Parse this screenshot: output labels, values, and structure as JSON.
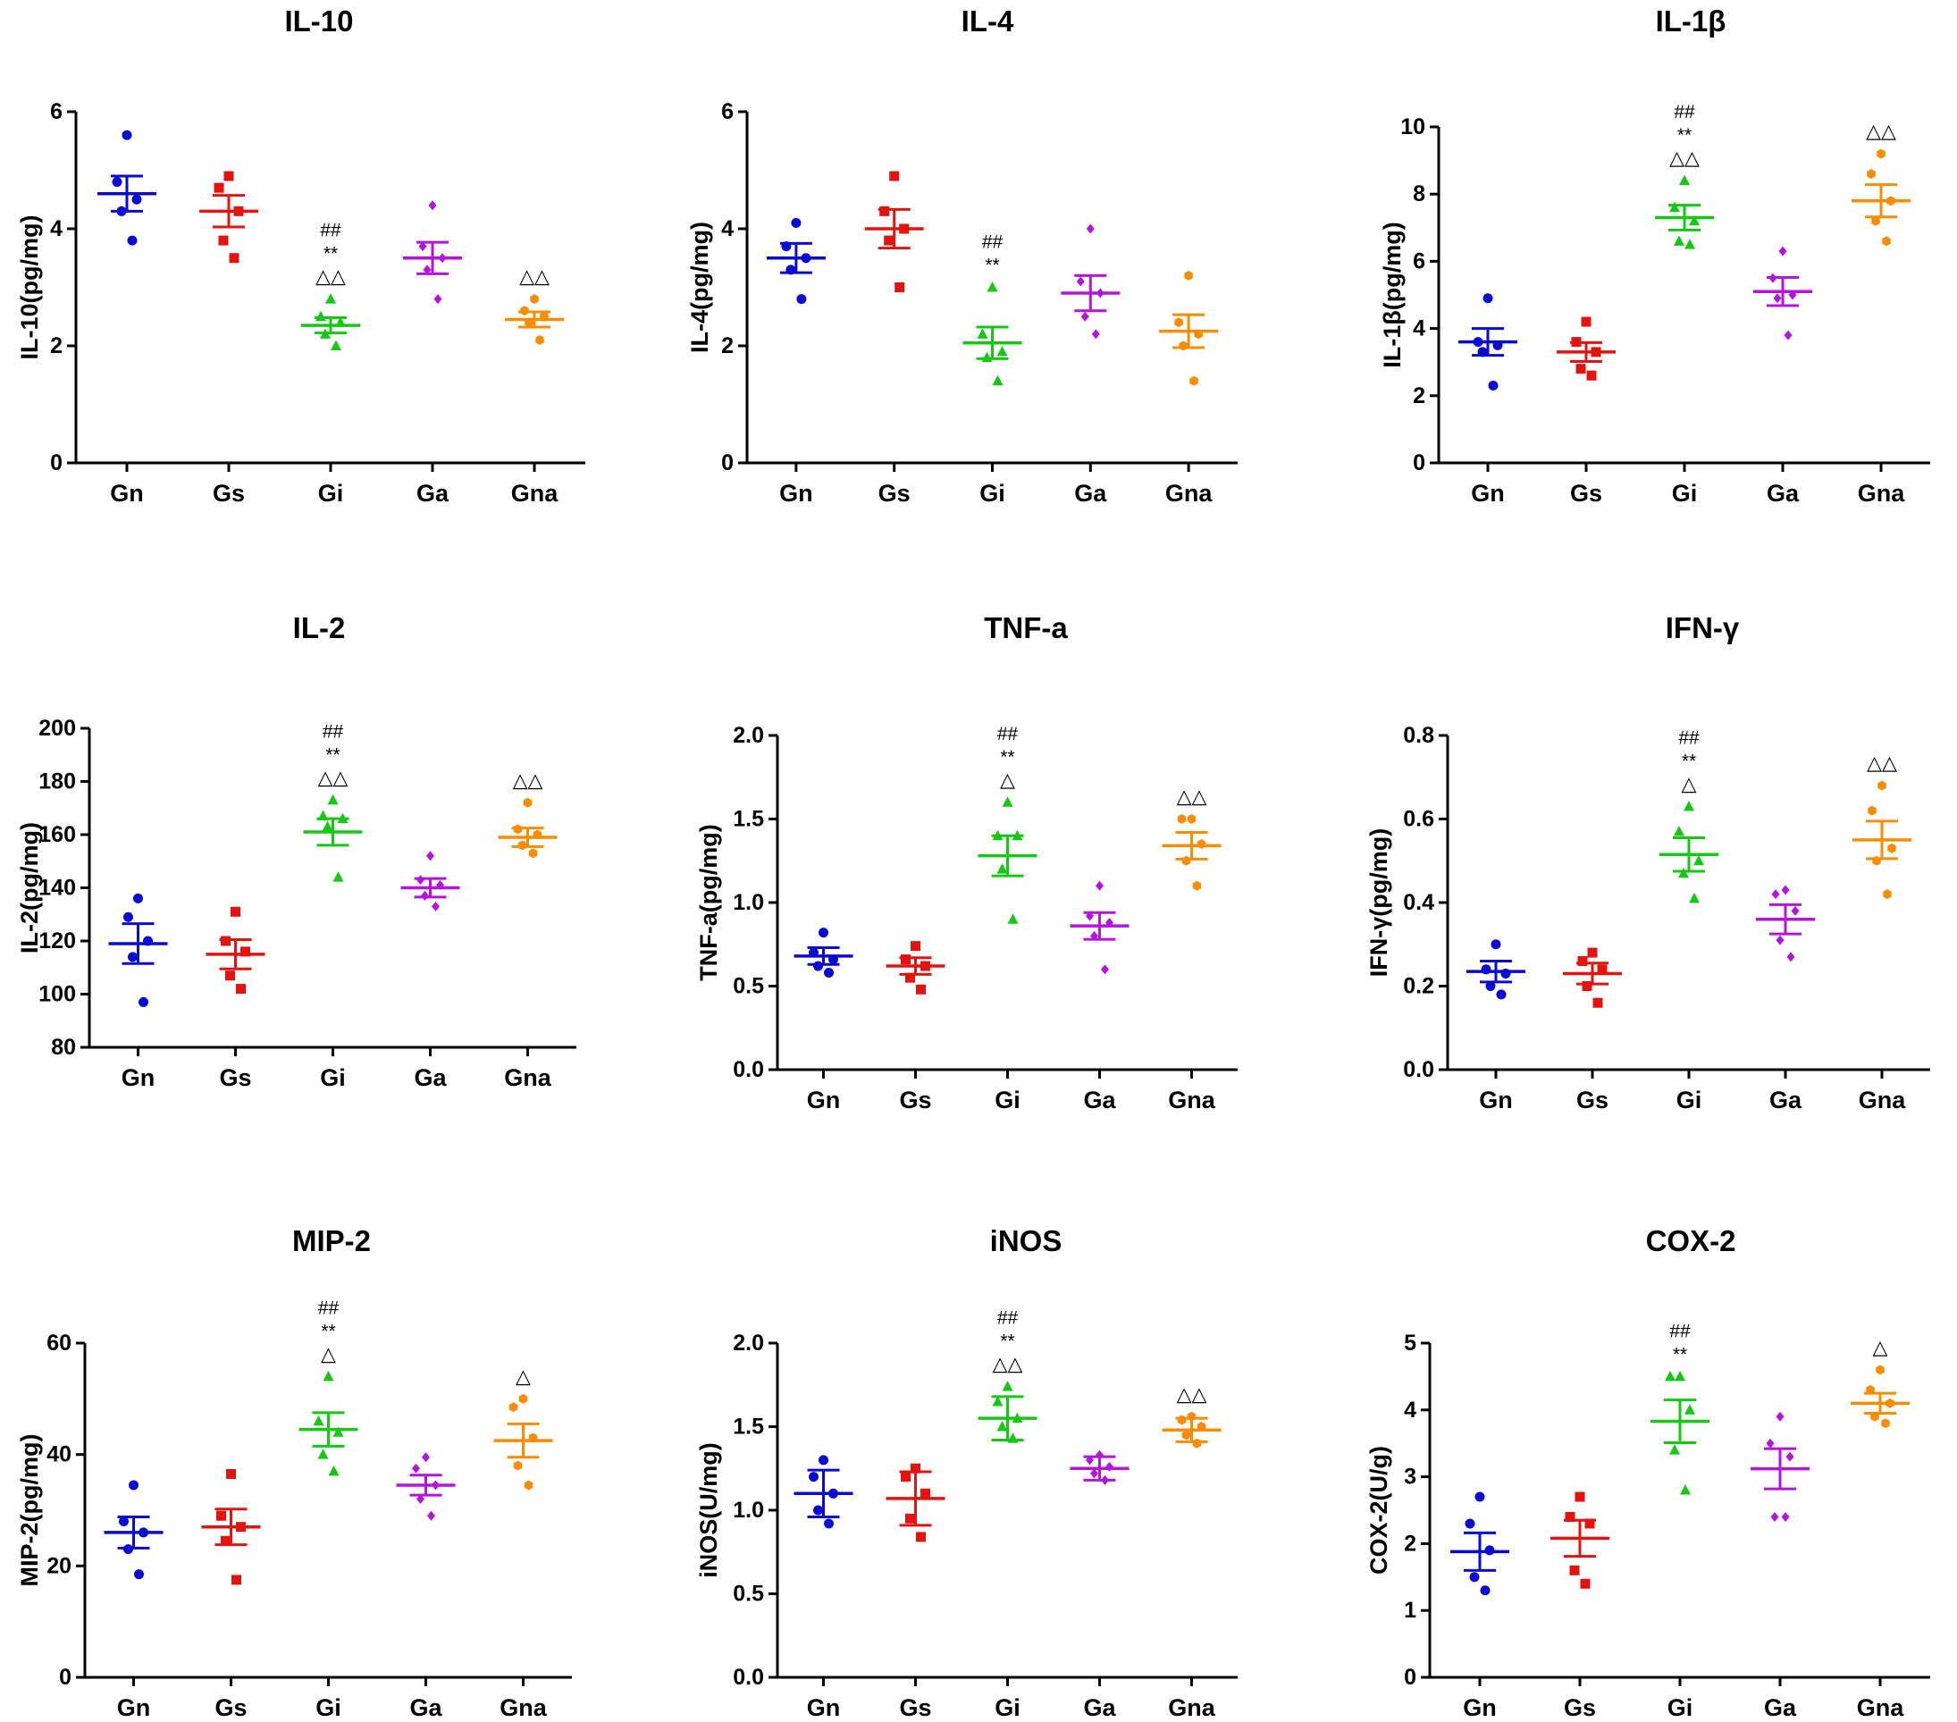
{
  "colors": {
    "Gn": "#0a0ad2",
    "Gs": "#e3140f",
    "Gi": "#14c814",
    "Ga": "#b414dc",
    "Gna": "#fa8c00"
  },
  "chart_data": [
    {
      "type": "scatter",
      "title": "IL-10",
      "ylabel": "IL-10(pg/mg)",
      "ylim": [
        0,
        6
      ],
      "yticks": [
        "0",
        "2",
        "4",
        "6"
      ],
      "categories": [
        "Gn",
        "Gs",
        "Gi",
        "Ga",
        "Gna"
      ],
      "series": [
        {
          "name": "Gn",
          "marker": "circle",
          "mean": 4.6,
          "sem": 0.3,
          "points": [
            5.6,
            4.8,
            4.5,
            4.3,
            3.8
          ]
        },
        {
          "name": "Gs",
          "marker": "square",
          "mean": 4.3,
          "sem": 0.27,
          "points": [
            4.9,
            4.7,
            4.3,
            3.8,
            3.5
          ]
        },
        {
          "name": "Gi",
          "marker": "triangle",
          "mean": 2.35,
          "sem": 0.13,
          "points": [
            2.8,
            2.5,
            2.4,
            2.2,
            2.0
          ]
        },
        {
          "name": "Ga",
          "marker": "diamond",
          "mean": 3.5,
          "sem": 0.27,
          "points": [
            4.4,
            3.7,
            3.5,
            3.3,
            2.8
          ]
        },
        {
          "name": "Gna",
          "marker": "hexagon",
          "mean": 2.45,
          "sem": 0.13,
          "points": [
            2.8,
            2.6,
            2.5,
            2.4,
            2.1
          ]
        }
      ],
      "annotations": [
        {
          "category": "Gi",
          "lines": [
            "##",
            "**",
            "△△"
          ]
        },
        {
          "category": "Gna",
          "lines": [
            "△△"
          ]
        }
      ]
    },
    {
      "type": "scatter",
      "title": "IL-4",
      "ylabel": "IL-4(pg/mg)",
      "ylim": [
        0,
        6
      ],
      "yticks": [
        "0",
        "2",
        "4",
        "6"
      ],
      "categories": [
        "Gn",
        "Gs",
        "Gi",
        "Ga",
        "Gna"
      ],
      "series": [
        {
          "name": "Gn",
          "marker": "circle",
          "mean": 3.5,
          "sem": 0.25,
          "points": [
            4.1,
            3.7,
            3.5,
            3.3,
            2.8
          ]
        },
        {
          "name": "Gs",
          "marker": "square",
          "mean": 4.0,
          "sem": 0.33,
          "points": [
            4.9,
            4.3,
            4.0,
            3.8,
            3.0
          ]
        },
        {
          "name": "Gi",
          "marker": "triangle",
          "mean": 2.05,
          "sem": 0.27,
          "points": [
            3.0,
            2.2,
            1.9,
            1.8,
            1.4
          ]
        },
        {
          "name": "Ga",
          "marker": "diamond",
          "mean": 2.9,
          "sem": 0.3,
          "points": [
            4.0,
            3.1,
            2.9,
            2.5,
            2.2
          ]
        },
        {
          "name": "Gna",
          "marker": "hexagon",
          "mean": 2.25,
          "sem": 0.28,
          "points": [
            3.2,
            2.4,
            2.2,
            2.0,
            1.4
          ]
        }
      ],
      "annotations": [
        {
          "category": "Gi",
          "lines": [
            "##",
            "**"
          ]
        }
      ]
    },
    {
      "type": "scatter",
      "title": "IL-1β",
      "ylabel": "IL-1β(pg/mg)",
      "ylim": [
        0,
        10
      ],
      "yticks": [
        "0",
        "2",
        "4",
        "6",
        "8",
        "10"
      ],
      "categories": [
        "Gn",
        "Gs",
        "Gi",
        "Ga",
        "Gna"
      ],
      "series": [
        {
          "name": "Gn",
          "marker": "circle",
          "mean": 3.6,
          "sem": 0.4,
          "points": [
            4.9,
            3.6,
            3.5,
            3.3,
            2.3
          ]
        },
        {
          "name": "Gs",
          "marker": "square",
          "mean": 3.3,
          "sem": 0.28,
          "points": [
            4.2,
            3.6,
            3.3,
            2.8,
            2.6
          ]
        },
        {
          "name": "Gi",
          "marker": "triangle",
          "mean": 7.3,
          "sem": 0.37,
          "points": [
            8.4,
            7.6,
            7.2,
            6.6,
            6.5
          ]
        },
        {
          "name": "Ga",
          "marker": "diamond",
          "mean": 5.1,
          "sem": 0.42,
          "points": [
            6.3,
            5.5,
            5.0,
            4.9,
            3.8
          ]
        },
        {
          "name": "Gna",
          "marker": "hexagon",
          "mean": 7.8,
          "sem": 0.48,
          "points": [
            9.2,
            8.6,
            7.8,
            7.2,
            6.6
          ]
        }
      ],
      "annotations": [
        {
          "category": "Gi",
          "lines": [
            "##",
            "**",
            "△△"
          ]
        },
        {
          "category": "Gna",
          "lines": [
            "△△"
          ]
        }
      ]
    },
    {
      "type": "scatter",
      "title": "IL-2",
      "ylabel": "IL-2(pg/mg)",
      "ylim": [
        80,
        200
      ],
      "yticks": [
        "80",
        "100",
        "120",
        "140",
        "160",
        "180",
        "200"
      ],
      "categories": [
        "Gn",
        "Gs",
        "Gi",
        "Ga",
        "Gna"
      ],
      "series": [
        {
          "name": "Gn",
          "marker": "circle",
          "mean": 119,
          "sem": 7.5,
          "points": [
            136,
            129,
            120,
            114,
            97
          ]
        },
        {
          "name": "Gs",
          "marker": "square",
          "mean": 115,
          "sem": 5.5,
          "points": [
            131,
            120,
            116,
            107,
            102
          ]
        },
        {
          "name": "Gi",
          "marker": "triangle",
          "mean": 161,
          "sem": 5,
          "points": [
            173,
            167,
            166,
            163,
            144
          ]
        },
        {
          "name": "Ga",
          "marker": "diamond",
          "mean": 140,
          "sem": 3.5,
          "points": [
            152,
            143,
            141,
            137,
            133
          ]
        },
        {
          "name": "Gna",
          "marker": "hexagon",
          "mean": 159,
          "sem": 3.5,
          "points": [
            172,
            162,
            160,
            156,
            153
          ]
        }
      ],
      "annotations": [
        {
          "category": "Gi",
          "lines": [
            "##",
            "**",
            "△△"
          ]
        },
        {
          "category": "Gna",
          "lines": [
            "△△"
          ]
        }
      ]
    },
    {
      "type": "scatter",
      "title": "TNF-a",
      "ylabel": "TNF-a(pg/mg)",
      "ylim": [
        0,
        2
      ],
      "yticks": [
        "0.0",
        "0.5",
        "1.0",
        "1.5",
        "2.0"
      ],
      "categories": [
        "Gn",
        "Gs",
        "Gi",
        "Ga",
        "Gna"
      ],
      "series": [
        {
          "name": "Gn",
          "marker": "circle",
          "mean": 0.68,
          "sem": 0.05,
          "points": [
            0.82,
            0.7,
            0.66,
            0.62,
            0.58
          ]
        },
        {
          "name": "Gs",
          "marker": "square",
          "mean": 0.62,
          "sem": 0.05,
          "points": [
            0.74,
            0.66,
            0.62,
            0.55,
            0.48
          ]
        },
        {
          "name": "Gi",
          "marker": "triangle",
          "mean": 1.28,
          "sem": 0.12,
          "points": [
            1.6,
            1.4,
            1.4,
            1.2,
            0.9
          ]
        },
        {
          "name": "Ga",
          "marker": "diamond",
          "mean": 0.86,
          "sem": 0.08,
          "points": [
            1.1,
            0.92,
            0.88,
            0.8,
            0.6
          ]
        },
        {
          "name": "Gna",
          "marker": "hexagon",
          "mean": 1.34,
          "sem": 0.08,
          "points": [
            1.5,
            1.5,
            1.35,
            1.25,
            1.1
          ]
        }
      ],
      "annotations": [
        {
          "category": "Gi",
          "lines": [
            "##",
            "**",
            "△"
          ]
        },
        {
          "category": "Gna",
          "lines": [
            "△△"
          ]
        }
      ]
    },
    {
      "type": "scatter",
      "title": "IFN-γ",
      "ylabel": "IFN-γ(pg/mg)",
      "ylim": [
        0,
        0.8
      ],
      "yticks": [
        "0.0",
        "0.2",
        "0.4",
        "0.6",
        "0.8"
      ],
      "categories": [
        "Gn",
        "Gs",
        "Gi",
        "Ga",
        "Gna"
      ],
      "series": [
        {
          "name": "Gn",
          "marker": "circle",
          "mean": 0.235,
          "sem": 0.025,
          "points": [
            0.3,
            0.24,
            0.23,
            0.2,
            0.18
          ]
        },
        {
          "name": "Gs",
          "marker": "square",
          "mean": 0.23,
          "sem": 0.025,
          "points": [
            0.28,
            0.26,
            0.24,
            0.2,
            0.16
          ]
        },
        {
          "name": "Gi",
          "marker": "triangle",
          "mean": 0.515,
          "sem": 0.04,
          "points": [
            0.63,
            0.57,
            0.5,
            0.47,
            0.41
          ]
        },
        {
          "name": "Ga",
          "marker": "diamond",
          "mean": 0.36,
          "sem": 0.035,
          "points": [
            0.43,
            0.42,
            0.38,
            0.31,
            0.27
          ]
        },
        {
          "name": "Gna",
          "marker": "hexagon",
          "mean": 0.55,
          "sem": 0.045,
          "points": [
            0.68,
            0.62,
            0.53,
            0.5,
            0.42
          ]
        }
      ],
      "annotations": [
        {
          "category": "Gi",
          "lines": [
            "##",
            "**",
            "△"
          ]
        },
        {
          "category": "Gna",
          "lines": [
            "△△"
          ]
        }
      ]
    },
    {
      "type": "scatter",
      "title": "MIP-2",
      "ylabel": "MIP-2(pg/mg)",
      "ylim": [
        0,
        60
      ],
      "yticks": [
        "0",
        "20",
        "40",
        "60"
      ],
      "categories": [
        "Gn",
        "Gs",
        "Gi",
        "Ga",
        "Gna"
      ],
      "series": [
        {
          "name": "Gn",
          "marker": "circle",
          "mean": 26,
          "sem": 2.8,
          "points": [
            34.5,
            28,
            26,
            23,
            18.5
          ]
        },
        {
          "name": "Gs",
          "marker": "square",
          "mean": 27,
          "sem": 3.2,
          "points": [
            36.5,
            29,
            27,
            24.5,
            17.5
          ]
        },
        {
          "name": "Gi",
          "marker": "triangle",
          "mean": 44.5,
          "sem": 3,
          "points": [
            54,
            46,
            44,
            40,
            37
          ]
        },
        {
          "name": "Ga",
          "marker": "diamond",
          "mean": 34.5,
          "sem": 1.8,
          "points": [
            39.5,
            37.5,
            34.5,
            32,
            29
          ]
        },
        {
          "name": "Gna",
          "marker": "hexagon",
          "mean": 42.5,
          "sem": 3,
          "points": [
            50,
            48.5,
            43,
            38,
            34.5
          ]
        }
      ],
      "annotations": [
        {
          "category": "Gi",
          "lines": [
            "##",
            "**",
            "△"
          ]
        },
        {
          "category": "Gna",
          "lines": [
            "△"
          ]
        }
      ]
    },
    {
      "type": "scatter",
      "title": "iNOS",
      "ylabel": "iNOS(U/mg)",
      "ylim": [
        0,
        2
      ],
      "yticks": [
        "0.0",
        "0.5",
        "1.0",
        "1.5",
        "2.0"
      ],
      "categories": [
        "Gn",
        "Gs",
        "Gi",
        "Ga",
        "Gna"
      ],
      "series": [
        {
          "name": "Gn",
          "marker": "circle",
          "mean": 1.1,
          "sem": 0.14,
          "points": [
            1.3,
            1.2,
            1.1,
            1.0,
            0.92
          ]
        },
        {
          "name": "Gs",
          "marker": "square",
          "mean": 1.07,
          "sem": 0.16,
          "points": [
            1.25,
            1.2,
            1.1,
            0.95,
            0.84
          ]
        },
        {
          "name": "Gi",
          "marker": "triangle",
          "mean": 1.55,
          "sem": 0.13,
          "points": [
            1.74,
            1.65,
            1.55,
            1.5,
            1.43
          ]
        },
        {
          "name": "Ga",
          "marker": "diamond",
          "mean": 1.25,
          "sem": 0.07,
          "points": [
            1.33,
            1.3,
            1.26,
            1.22,
            1.18
          ]
        },
        {
          "name": "Gna",
          "marker": "hexagon",
          "mean": 1.48,
          "sem": 0.07,
          "points": [
            1.56,
            1.54,
            1.5,
            1.45,
            1.4
          ]
        }
      ],
      "annotations": [
        {
          "category": "Gi",
          "lines": [
            "##",
            "**",
            "△△"
          ]
        },
        {
          "category": "Gna",
          "lines": [
            "△△"
          ]
        }
      ]
    },
    {
      "type": "scatter",
      "title": "COX-2",
      "ylabel": "COX-2(U/g)",
      "ylim": [
        0,
        5
      ],
      "yticks": [
        "0",
        "1",
        "2",
        "3",
        "4",
        "5"
      ],
      "categories": [
        "Gn",
        "Gs",
        "Gi",
        "Ga",
        "Gna"
      ],
      "series": [
        {
          "name": "Gn",
          "marker": "circle",
          "mean": 1.88,
          "sem": 0.28,
          "points": [
            2.7,
            2.3,
            1.9,
            1.5,
            1.3
          ]
        },
        {
          "name": "Gs",
          "marker": "square",
          "mean": 2.08,
          "sem": 0.27,
          "points": [
            2.7,
            2.4,
            2.3,
            1.6,
            1.4
          ]
        },
        {
          "name": "Gi",
          "marker": "triangle",
          "mean": 3.83,
          "sem": 0.32,
          "points": [
            4.5,
            4.5,
            4.0,
            3.4,
            2.8
          ]
        },
        {
          "name": "Ga",
          "marker": "diamond",
          "mean": 3.12,
          "sem": 0.3,
          "points": [
            3.9,
            3.5,
            3.3,
            2.4,
            2.4
          ]
        },
        {
          "name": "Gna",
          "marker": "hexagon",
          "mean": 4.1,
          "sem": 0.15,
          "points": [
            4.6,
            4.3,
            4.1,
            3.9,
            3.8
          ]
        }
      ],
      "annotations": [
        {
          "category": "Gi",
          "lines": [
            "##",
            "**"
          ]
        },
        {
          "category": "Gna",
          "lines": [
            "△"
          ]
        }
      ]
    }
  ]
}
